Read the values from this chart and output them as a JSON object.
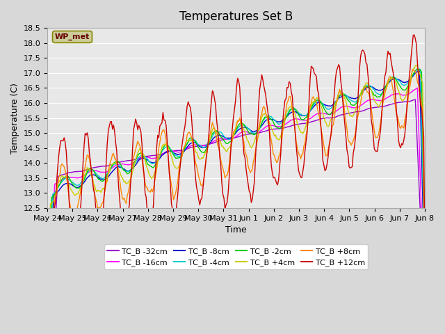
{
  "title": "Temperatures Set B",
  "xlabel": "Time",
  "ylabel": "Temperature (C)",
  "ylim": [
    12.5,
    18.5
  ],
  "yticks": [
    12.5,
    13.0,
    13.5,
    14.0,
    14.5,
    15.0,
    15.5,
    16.0,
    16.5,
    17.0,
    17.5,
    18.0,
    18.5
  ],
  "xtick_labels": [
    "May 24",
    "May 25",
    "May 26",
    "May 27",
    "May 28",
    "May 29",
    "May 30",
    "May 31",
    "Jun 1",
    "Jun 2",
    "Jun 3",
    "Jun 4",
    "Jun 5",
    "Jun 6",
    "Jun 7",
    "Jun 8"
  ],
  "series": [
    {
      "label": "TC_B -32cm",
      "color": "#9900cc"
    },
    {
      "label": "TC_B -16cm",
      "color": "#ff00ff"
    },
    {
      "label": "TC_B -8cm",
      "color": "#0000cc"
    },
    {
      "label": "TC_B -4cm",
      "color": "#00cccc"
    },
    {
      "label": "TC_B -2cm",
      "color": "#00cc00"
    },
    {
      "label": "TC_B +4cm",
      "color": "#cccc00"
    },
    {
      "label": "TC_B +8cm",
      "color": "#ff8800"
    },
    {
      "label": "TC_B +12cm",
      "color": "#cc0000"
    }
  ],
  "wp_met_box_color": "#cccc99",
  "wp_met_text_color": "#660000",
  "background_color": "#e8e8e8",
  "title_fontsize": 12,
  "axis_fontsize": 9,
  "tick_fontsize": 8,
  "legend_fontsize": 8
}
